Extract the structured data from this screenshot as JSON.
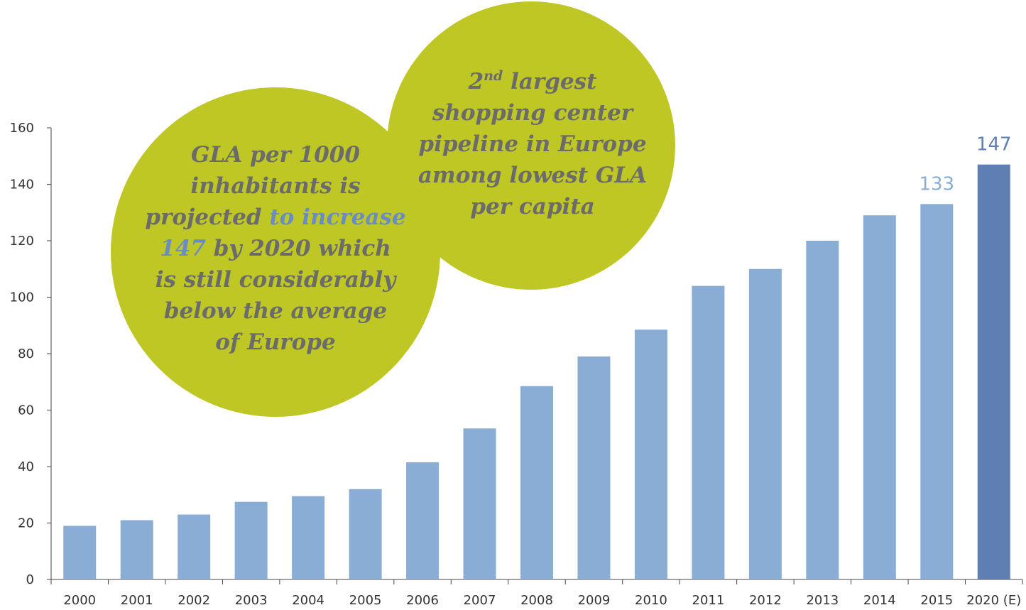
{
  "chart_data": {
    "type": "bar",
    "categories": [
      "2000",
      "2001",
      "2002",
      "2003",
      "2004",
      "2005",
      "2006",
      "2007",
      "2008",
      "2009",
      "2010",
      "2011",
      "2012",
      "2013",
      "2014",
      "2015",
      "2020 (E)"
    ],
    "values": [
      19,
      21,
      23,
      27.5,
      29.5,
      32,
      41.5,
      53.5,
      68.5,
      79,
      88.5,
      104,
      110,
      120,
      129,
      133,
      147
    ],
    "value_labels": [
      null,
      null,
      null,
      null,
      null,
      null,
      null,
      null,
      null,
      null,
      null,
      null,
      null,
      null,
      null,
      "133",
      "147"
    ],
    "colors": [
      "#8aadd5",
      "#8aadd5",
      "#8aadd5",
      "#8aadd5",
      "#8aadd5",
      "#8aadd5",
      "#8aadd5",
      "#8aadd5",
      "#8aadd5",
      "#8aadd5",
      "#8aadd5",
      "#8aadd5",
      "#8aadd5",
      "#8aadd5",
      "#8aadd5",
      "#8aadd5",
      "#5f7fb3"
    ],
    "label_colors": [
      null,
      null,
      null,
      null,
      null,
      null,
      null,
      null,
      null,
      null,
      null,
      null,
      null,
      null,
      null,
      "#8aadd5",
      "#5f7fb3"
    ],
    "ylim": [
      0,
      160
    ],
    "yticks": [
      0,
      20,
      40,
      60,
      80,
      100,
      120,
      140,
      160
    ],
    "grid": false,
    "annotation_color": "#bec723",
    "highlight_color": "#6a8cc4",
    "annotations": [
      {
        "lines": [
          [
            {
              "text": "GLA per 1000"
            }
          ],
          [
            {
              "text": "inhabitants is"
            }
          ],
          [
            {
              "text": "projected "
            },
            {
              "text": "to increase",
              "style": "highlight"
            }
          ],
          [
            {
              "text": "147",
              "style": "highlight"
            },
            {
              "text": " by 2020 which"
            }
          ],
          [
            {
              "text": "is still considerably"
            }
          ],
          [
            {
              "text": "below the average"
            }
          ],
          [
            {
              "text": "of Europe"
            }
          ]
        ]
      },
      {
        "lines": [
          [
            {
              "text": "2"
            },
            {
              "text": "nd",
              "style": "sup"
            },
            {
              "text": " largest"
            }
          ],
          [
            {
              "text": "shopping center"
            }
          ],
          [
            {
              "text": "pipeline in Europe"
            }
          ],
          [
            {
              "text": "among lowest GLA"
            }
          ],
          [
            {
              "text": "per capita"
            }
          ]
        ]
      }
    ]
  }
}
